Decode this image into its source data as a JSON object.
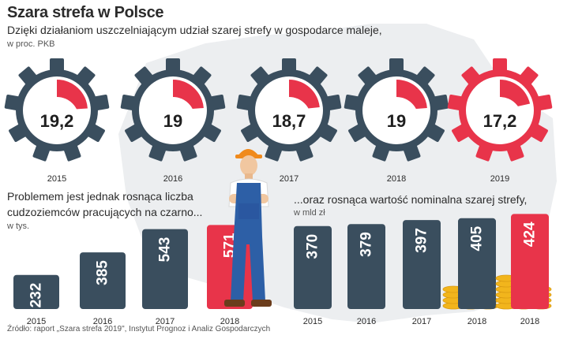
{
  "header": {
    "title": "Szara strefa w Polsce",
    "subtitle": "Dzięki działaniom uszczelniającym udział szarej strefy w gospodarce maleje,",
    "unit": "w proc. PKB"
  },
  "left_section": {
    "title_line1": "Problemem jest jednak rosnąca liczba",
    "title_line2": "cudzoziemców pracujących na czarno...",
    "unit": "w tys."
  },
  "right_section": {
    "title": "...oraz rosnąca wartość nominalna szarej strefy,",
    "unit": "w mld zł"
  },
  "source": "Źródło: raport „Szara strefa 2019\", Instytut Prognoz i Analiz Gospodarczych",
  "colors": {
    "dark": "#3a4e5e",
    "red": "#e8344a",
    "white": "#ffffff",
    "gold": "#f2b51c"
  },
  "chart_data": [
    {
      "type": "pie",
      "title": "Dzięki działaniom uszczelniającym udział szarej strefy w gospodarce maleje,",
      "ylabel": "w proc. PKB",
      "categories": [
        "2015",
        "2016",
        "2017",
        "2018",
        "2019"
      ],
      "values": [
        19.2,
        19,
        18.7,
        19,
        17.2
      ],
      "labels": [
        "19,2",
        "19",
        "18,7",
        "19",
        "17,2"
      ],
      "highlight": [
        "2019"
      ]
    },
    {
      "type": "bar",
      "title": "Problemem jest jednak rosnąca liczba cudzoziemców pracujących na czarno...",
      "ylabel": "w tys.",
      "categories": [
        "2015",
        "2016",
        "2017",
        "2018"
      ],
      "values": [
        232,
        385,
        543,
        571
      ],
      "labels": [
        "232",
        "385",
        "543",
        "571"
      ],
      "highlight": [
        "2018"
      ],
      "ylim": [
        0,
        600
      ]
    },
    {
      "type": "bar",
      "title": "...oraz rosnąca wartość nominalna szarej strefy,",
      "ylabel": "w mld zł",
      "categories": [
        "2015",
        "2016",
        "2017",
        "2018",
        "2018"
      ],
      "values": [
        370,
        379,
        397,
        405,
        424
      ],
      "labels": [
        "370",
        "379",
        "397",
        "405",
        "424"
      ],
      "highlight_index": 4,
      "ylim": [
        0,
        450
      ]
    }
  ]
}
